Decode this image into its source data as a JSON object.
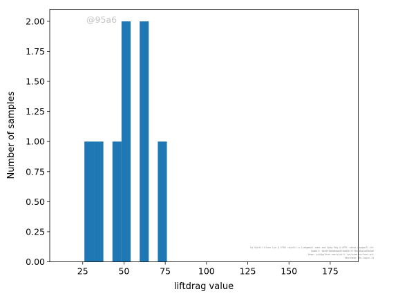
{
  "chart_data": {
    "type": "bar",
    "xlabel": "liftdrag value",
    "ylabel": "Number of samples",
    "xlim": [
      5,
      192
    ],
    "ylim": [
      0,
      2.1
    ],
    "xticks": [
      25,
      50,
      75,
      100,
      125,
      150,
      175
    ],
    "yticks": [
      0.0,
      0.25,
      0.5,
      0.75,
      1.0,
      1.25,
      1.5,
      1.75,
      2.0
    ],
    "ytick_labels": [
      "0.00",
      "0.25",
      "0.50",
      "0.75",
      "1.00",
      "1.25",
      "1.50",
      "1.75",
      "2.00"
    ],
    "bars": [
      {
        "x0": 26.0,
        "x1": 32.0,
        "value": 1
      },
      {
        "x0": 32.0,
        "x1": 37.5,
        "value": 1
      },
      {
        "x0": 43.0,
        "x1": 48.5,
        "value": 1
      },
      {
        "x0": 48.5,
        "x1": 54.0,
        "value": 2
      },
      {
        "x0": 59.5,
        "x1": 65.0,
        "value": 2
      },
      {
        "x0": 70.5,
        "x1": 76.0,
        "value": 1
      }
    ],
    "bar_color": "#1f77b4",
    "grid": false
  },
  "watermark": "@95a6",
  "credits": [
    "by Kjetil Olsen Lye @ ETHZ <kjetil.o.lye@gmail.com> and Deep Ray @ EPFL <deep.ray@epfl.ch>",
    "Commit: 05e0f5a6e0ebd8f2b6653ff79b8d6a1ad5b4a6",
    "Repo: git@github.com:kjetil-lye/some_surfnet.git",
    "Hostname: eu-login-13"
  ]
}
